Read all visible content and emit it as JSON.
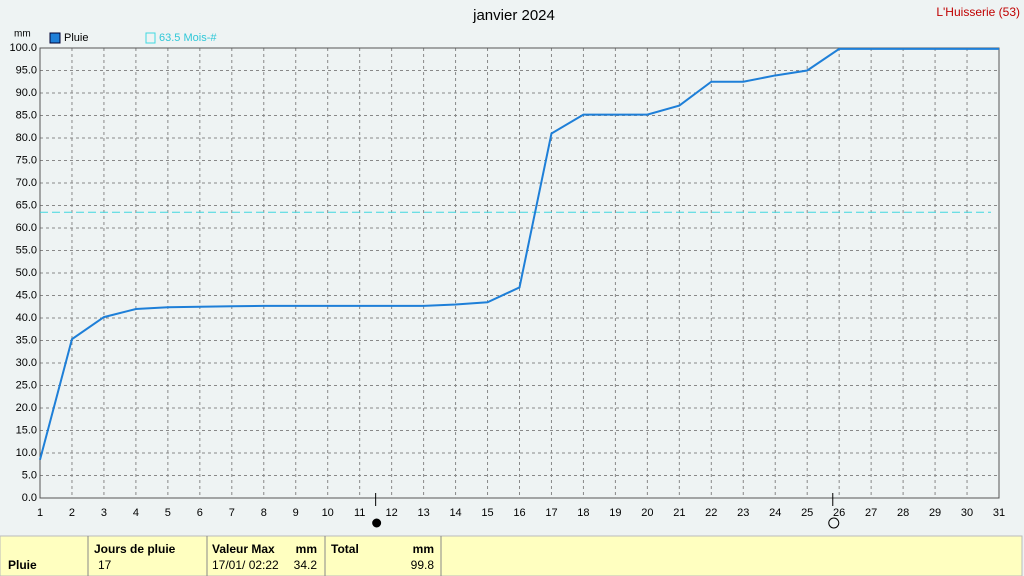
{
  "chart_data": {
    "type": "line",
    "title": "janvier 2024",
    "station": "L'Huisserie (53)",
    "y_unit": "mm",
    "x": [
      1,
      2,
      3,
      4,
      5,
      6,
      7,
      8,
      9,
      10,
      11,
      12,
      13,
      14,
      15,
      16,
      17,
      18,
      19,
      20,
      21,
      22,
      23,
      24,
      25,
      26,
      27,
      28,
      29,
      30,
      31
    ],
    "series": [
      {
        "name": "Pluie",
        "color": "#1e7fd8",
        "values": [
          8.5,
          35.3,
          40.2,
          42.0,
          42.4,
          42.5,
          42.6,
          42.7,
          42.7,
          42.7,
          42.7,
          42.7,
          42.7,
          43.0,
          43.5,
          46.8,
          81.0,
          85.2,
          85.2,
          85.2,
          87.2,
          92.5,
          92.5,
          93.9,
          95.0,
          99.8,
          99.8,
          99.8,
          99.8,
          99.8,
          99.8
        ]
      }
    ],
    "reference": {
      "value": 63.5,
      "label": "63.5 Mois-#",
      "color": "#40d8e0"
    },
    "xlim": [
      1,
      31
    ],
    "xticks": [
      1,
      2,
      3,
      4,
      5,
      6,
      7,
      8,
      9,
      10,
      11,
      12,
      13,
      14,
      15,
      16,
      17,
      18,
      19,
      20,
      21,
      22,
      23,
      24,
      25,
      26,
      27,
      28,
      29,
      30,
      31
    ],
    "ylim": [
      0,
      100
    ],
    "yticks": [
      {
        "value": 0,
        "label": "0.0"
      },
      {
        "value": 5,
        "label": "5.0"
      },
      {
        "value": 10,
        "label": "10.0"
      },
      {
        "value": 15,
        "label": "15.0"
      },
      {
        "value": 20,
        "label": "20.0"
      },
      {
        "value": 25,
        "label": "25.0"
      },
      {
        "value": 30,
        "label": "30.0"
      },
      {
        "value": 35,
        "label": "35.0"
      },
      {
        "value": 40,
        "label": "40.0"
      },
      {
        "value": 45,
        "label": "45.0"
      },
      {
        "value": 50,
        "label": "50.0"
      },
      {
        "value": 55,
        "label": "55.0"
      },
      {
        "value": 60,
        "label": "60.0"
      },
      {
        "value": 65,
        "label": "65.0"
      },
      {
        "value": 70,
        "label": "70.0"
      },
      {
        "value": 75,
        "label": "75.0"
      },
      {
        "value": 80,
        "label": "80.0"
      },
      {
        "value": 85,
        "label": "85.0"
      },
      {
        "value": 90,
        "label": "90.0"
      },
      {
        "value": 95,
        "label": "95.0"
      },
      {
        "value": 100,
        "label": "100.0"
      }
    ],
    "grid": true,
    "moon_phases": [
      {
        "x": 11.5,
        "filled": true
      },
      {
        "x": 25.8,
        "filled": false
      }
    ]
  },
  "table": {
    "row_label": "Pluie",
    "columns": [
      {
        "header": "Jours de pluie",
        "value": "17"
      },
      {
        "header": "Valeur Max",
        "unit": "mm",
        "value": "17/01/  02:22",
        "value2": "34.2"
      },
      {
        "header": "Total",
        "unit": "mm",
        "value": "99.8"
      }
    ]
  }
}
